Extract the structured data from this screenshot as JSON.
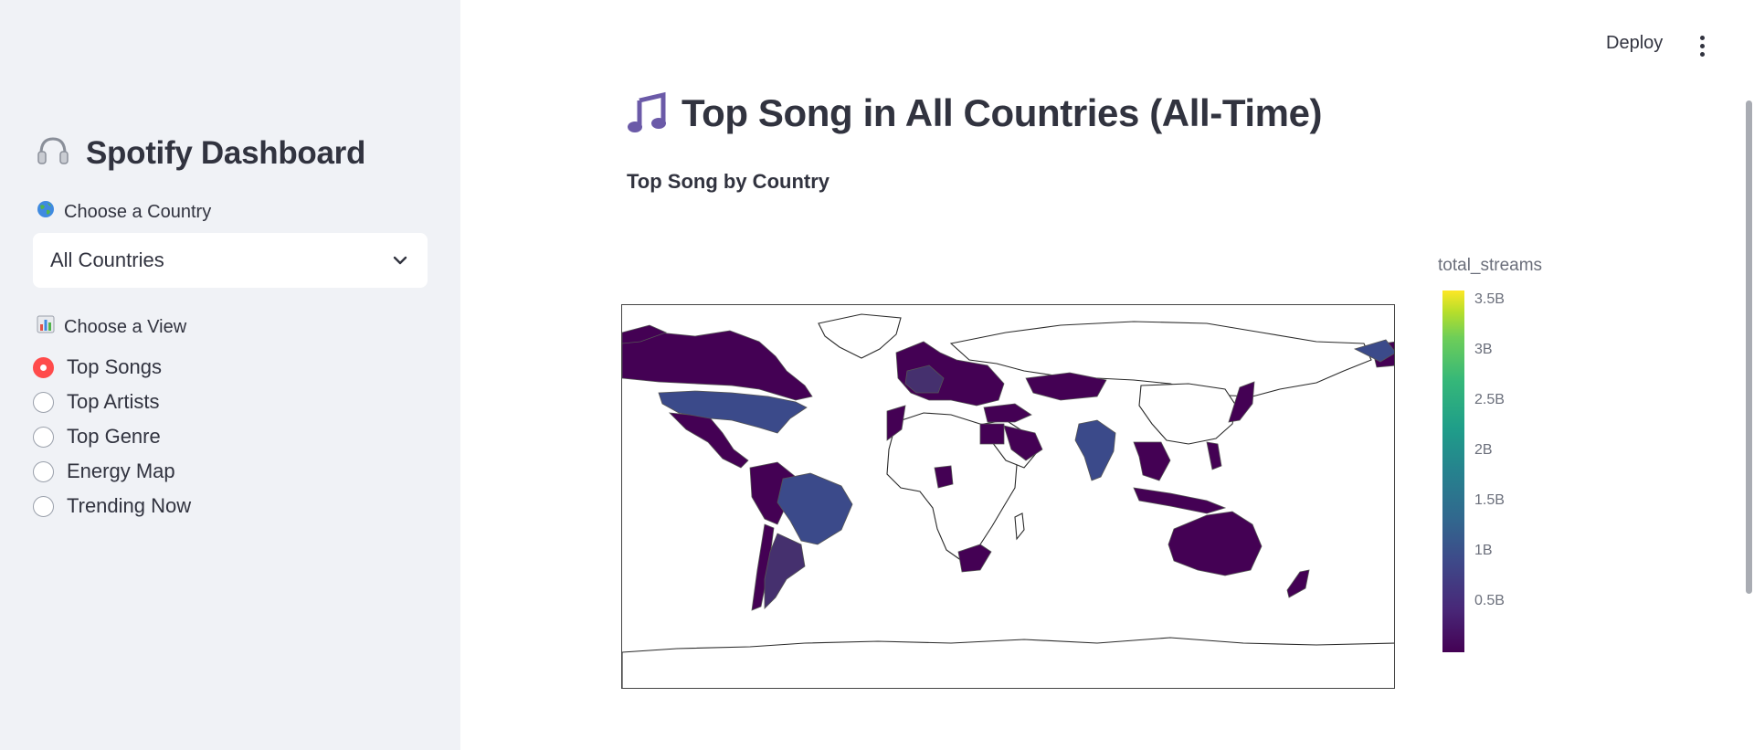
{
  "sidebar": {
    "title_icon": "headphones-icon",
    "title": "Spotify Dashboard",
    "country_label_icon": "globe-icon",
    "country_label": "Choose a Country",
    "country_selected": "All Countries",
    "view_label_icon": "bar-chart-icon",
    "view_label": "Choose a View",
    "views": [
      {
        "label": "Top Songs",
        "selected": true
      },
      {
        "label": "Top Artists",
        "selected": false
      },
      {
        "label": "Top Genre",
        "selected": false
      },
      {
        "label": "Energy Map",
        "selected": false
      },
      {
        "label": "Trending Now",
        "selected": false
      }
    ],
    "accent_color": "#ff4b4b"
  },
  "header": {
    "deploy_label": "Deploy",
    "menu_icon": "kebab-menu-icon"
  },
  "main": {
    "title_icon": "music-note-icon",
    "title": "Top Song in All Countries (All-Time)",
    "subheading": "Top Song by Country"
  },
  "chart_data": {
    "type": "choropleth",
    "title": "",
    "colorbar_title": "total_streams",
    "colorscale": "viridis",
    "colorbar_ticks": [
      "3.5B",
      "3B",
      "2.5B",
      "2B",
      "1.5B",
      "1B",
      "0.5B"
    ],
    "colorbar_tick_values": [
      3.5,
      3,
      2.5,
      2,
      1.5,
      1,
      0.5
    ],
    "colorbar_range": [
      0,
      3.6
    ],
    "regions": [
      {
        "name": "United States",
        "value": 1.0
      },
      {
        "name": "Brazil",
        "value": 0.95
      },
      {
        "name": "India",
        "value": 0.85
      },
      {
        "name": "Australia",
        "value": 0.35
      },
      {
        "name": "Canada",
        "value": 0.3
      },
      {
        "name": "Mexico",
        "value": 0.3
      },
      {
        "name": "Argentina",
        "value": 0.55
      }
    ]
  }
}
